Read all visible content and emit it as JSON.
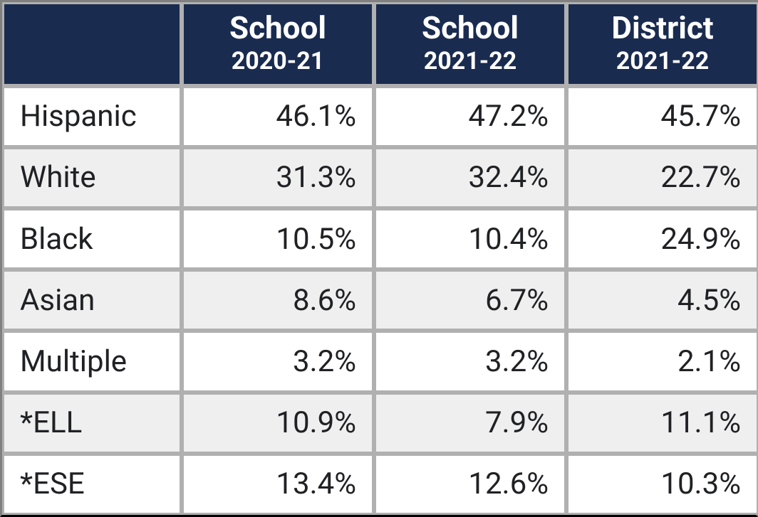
{
  "table": {
    "type": "table",
    "header_bg": "#1a2b50",
    "header_fg": "#ffffff",
    "row_bg_odd": "#ffffff",
    "row_bg_even": "#efefef",
    "border_color": "#b0b0b0",
    "text_color": "#202124",
    "header_title_fontsize": 44,
    "header_sub_fontsize": 34,
    "cell_fontsize": 42,
    "columns": [
      {
        "title": "",
        "sub": ""
      },
      {
        "title": "School",
        "sub": "2020-21"
      },
      {
        "title": "School",
        "sub": "2021-22"
      },
      {
        "title": "District",
        "sub": "2021-22"
      }
    ],
    "rows": [
      {
        "label": "Hispanic",
        "values": [
          "46.1%",
          "47.2%",
          "45.7%"
        ]
      },
      {
        "label": "White",
        "values": [
          "31.3%",
          "32.4%",
          "22.7%"
        ]
      },
      {
        "label": "Black",
        "values": [
          "10.5%",
          "10.4%",
          "24.9%"
        ]
      },
      {
        "label": "Asian",
        "values": [
          "8.6%",
          "6.7%",
          "4.5%"
        ]
      },
      {
        "label": "Multiple",
        "values": [
          "3.2%",
          "3.2%",
          "2.1%"
        ]
      },
      {
        "label": "*ELL",
        "values": [
          "10.9%",
          "7.9%",
          "11.1%"
        ]
      },
      {
        "label": "*ESE",
        "values": [
          "13.4%",
          "12.6%",
          "10.3%"
        ]
      }
    ]
  }
}
